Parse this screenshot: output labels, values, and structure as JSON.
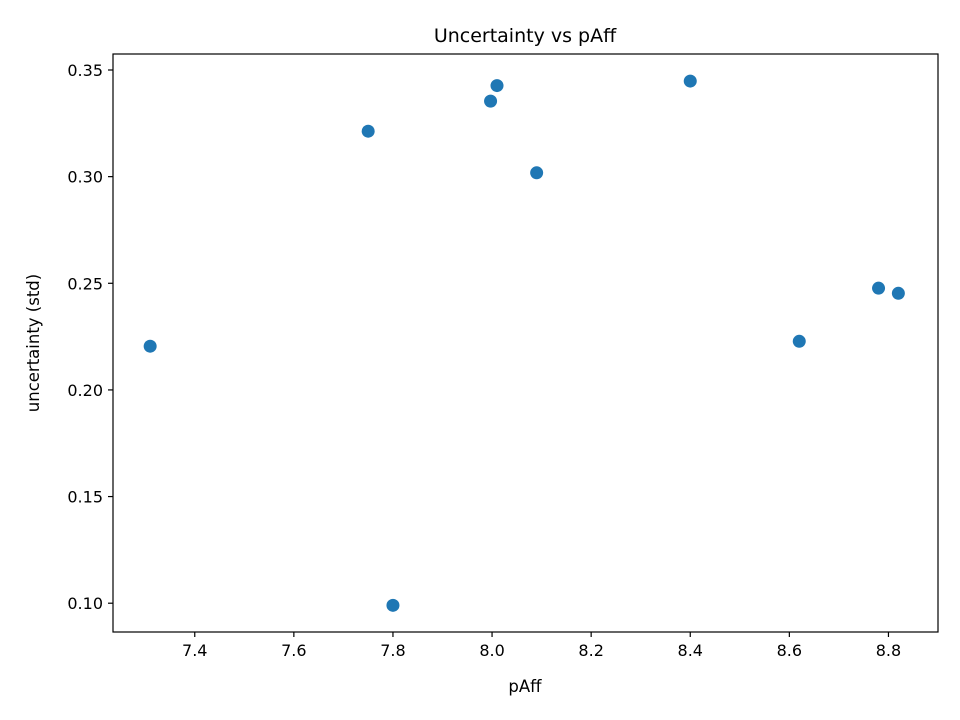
{
  "chart_data": {
    "type": "scatter",
    "title": "Uncertainty vs pAff",
    "xlabel": "pAff",
    "ylabel": "uncertainty (std)",
    "xlim": [
      7.235,
      8.9
    ],
    "ylim": [
      0.0865,
      0.3575
    ],
    "x_ticks": [
      7.4,
      7.6,
      7.8,
      8.0,
      8.2,
      8.4,
      8.6,
      8.8
    ],
    "x_tick_labels": [
      "7.4",
      "7.6",
      "7.8",
      "8.0",
      "8.2",
      "8.4",
      "8.6",
      "8.8"
    ],
    "y_ticks": [
      0.1,
      0.15,
      0.2,
      0.25,
      0.3,
      0.35
    ],
    "y_tick_labels": [
      "0.10",
      "0.15",
      "0.20",
      "0.25",
      "0.30",
      "0.35"
    ],
    "grid": false,
    "marker_color": "#1f77b4",
    "points": [
      {
        "x": 7.31,
        "y": 0.2205
      },
      {
        "x": 7.75,
        "y": 0.3213
      },
      {
        "x": 7.8,
        "y": 0.099
      },
      {
        "x": 7.997,
        "y": 0.3354
      },
      {
        "x": 8.01,
        "y": 0.3427
      },
      {
        "x": 8.09,
        "y": 0.3018
      },
      {
        "x": 8.4,
        "y": 0.3448
      },
      {
        "x": 8.62,
        "y": 0.2228
      },
      {
        "x": 8.78,
        "y": 0.2477
      },
      {
        "x": 8.82,
        "y": 0.2453
      }
    ]
  }
}
